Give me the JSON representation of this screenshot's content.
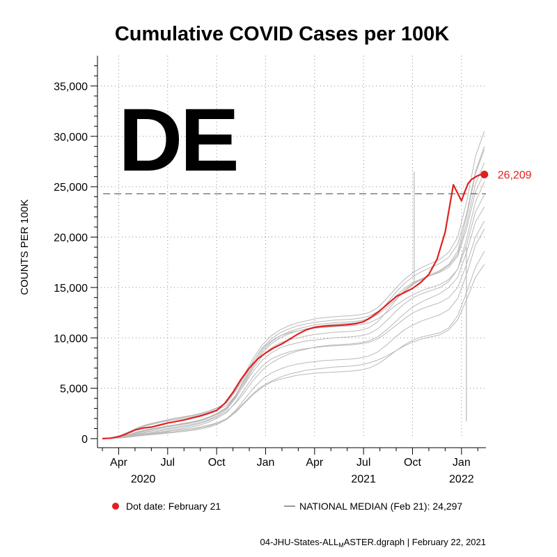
{
  "chart_data": {
    "type": "line",
    "title": "Cumulative COVID Cases per 100K",
    "state_label": "DE",
    "ylabel": "COUNTS PER 100K",
    "xlabel": "",
    "ylim": [
      0,
      38000
    ],
    "yticks": [
      {
        "value": 0,
        "label": "0"
      },
      {
        "value": 5000,
        "label": "5,000"
      },
      {
        "value": 10000,
        "label": "10,000"
      },
      {
        "value": 15000,
        "label": "15,000"
      },
      {
        "value": 20000,
        "label": "20,000"
      },
      {
        "value": 25000,
        "label": "25,000"
      },
      {
        "value": 30000,
        "label": "30,000"
      },
      {
        "value": 35000,
        "label": "35,000"
      }
    ],
    "xlim_months": [
      -0.3,
      23.5
    ],
    "x_axis_note": "x in months since Mar 2020",
    "xticks": [
      {
        "value": 1,
        "label": "Apr"
      },
      {
        "value": 4,
        "label": "Jul"
      },
      {
        "value": 7,
        "label": "Oct"
      },
      {
        "value": 10,
        "label": "Jan"
      },
      {
        "value": 13,
        "label": "Apr"
      },
      {
        "value": 16,
        "label": "Jul"
      },
      {
        "value": 19,
        "label": "Oct"
      },
      {
        "value": 22,
        "label": "Jan"
      }
    ],
    "year_labels": [
      {
        "value": 2.5,
        "label": "2020"
      },
      {
        "value": 16,
        "label": "2021"
      },
      {
        "value": 22,
        "label": "2022"
      }
    ],
    "national_median": {
      "value": 24297,
      "label": "NATIONAL MEDIAN (Feb 21): 24,297"
    },
    "highlight_series": {
      "name": "DE",
      "color": "#e02020",
      "x": [
        0,
        0.5,
        1,
        1.5,
        2,
        2.5,
        3,
        3.5,
        4,
        4.5,
        5,
        5.5,
        6,
        6.5,
        7,
        7.5,
        8,
        8.5,
        9,
        9.5,
        10,
        10.5,
        11,
        11.5,
        12,
        12.5,
        13,
        13.5,
        14,
        14.5,
        15,
        15.5,
        16,
        16.5,
        17,
        17.5,
        18,
        18.5,
        19,
        19.5,
        20,
        20.5,
        21,
        21.5,
        22,
        22.2,
        22.4,
        22.6,
        22.8,
        23,
        23.2,
        23.4
      ],
      "values": [
        0,
        50,
        200,
        500,
        850,
        1050,
        1150,
        1350,
        1550,
        1700,
        1850,
        2050,
        2250,
        2500,
        2800,
        3500,
        4600,
        5900,
        7000,
        7900,
        8500,
        9000,
        9400,
        9900,
        10400,
        10800,
        11050,
        11150,
        11200,
        11250,
        11300,
        11400,
        11600,
        12100,
        12700,
        13400,
        14100,
        14500,
        14900,
        15500,
        16300,
        17800,
        20500,
        25200,
        23600,
        24500,
        25300,
        25700,
        25900,
        26100,
        26200,
        26209
      ]
    },
    "dot": {
      "x": 23.4,
      "value": 26209,
      "label": "26,209"
    },
    "legend": {
      "dot_label": "Dot date: February 21",
      "median_label": "NATIONAL MEDIAN (Feb 21): 24,297"
    },
    "background_series_note": "gray lines = other US states (cumulative cases per 100K)",
    "background_series": [
      {
        "name": "state-01",
        "values": [
          0,
          30,
          100,
          250,
          450,
          600,
          700,
          850,
          1000,
          1150,
          1300,
          1500,
          1800,
          2200,
          2700,
          3500,
          4600,
          5800,
          6800,
          7500,
          8000,
          8400,
          8700,
          8900,
          9100,
          9200,
          9300,
          9350,
          9400,
          9500,
          9700,
          10100,
          10800,
          11600,
          12400,
          13100,
          13600,
          14000,
          14400,
          15000,
          16000,
          18500,
          21500,
          23000
        ]
      },
      {
        "name": "state-02",
        "values": [
          0,
          20,
          80,
          200,
          350,
          450,
          550,
          650,
          800,
          900,
          1000,
          1150,
          1350,
          1600,
          2000,
          2700,
          3600,
          4500,
          5200,
          5700,
          6100,
          6400,
          6600,
          6800,
          6900,
          7000,
          7100,
          7150,
          7200,
          7300,
          7500,
          7800,
          8200,
          8700,
          9200,
          9600,
          9900,
          10100,
          10300,
          10800,
          11800,
          13800,
          16000,
          17300
        ]
      },
      {
        "name": "state-03",
        "values": [
          0,
          60,
          250,
          600,
          1000,
          1300,
          1500,
          1700,
          1850,
          2000,
          2150,
          2350,
          2600,
          2900,
          3300,
          4300,
          5700,
          7200,
          8500,
          9400,
          10000,
          10400,
          10700,
          10900,
          11100,
          11250,
          11350,
          11400,
          11450,
          11550,
          11800,
          12400,
          13400,
          14500,
          15400,
          16100,
          16600,
          17000,
          17400,
          18000,
          19300,
          22300,
          26500,
          29000
        ]
      },
      {
        "name": "state-04",
        "values": [
          0,
          40,
          150,
          350,
          600,
          800,
          950,
          1100,
          1250,
          1400,
          1550,
          1750,
          2050,
          2450,
          3000,
          4200,
          5800,
          7400,
          8700,
          9600,
          10200,
          10600,
          10900,
          11100,
          11300,
          11400,
          11500,
          11550,
          11600,
          11700,
          11900,
          12300,
          13000,
          13800,
          14600,
          15300,
          15800,
          16200,
          16600,
          17200,
          18300,
          21300,
          25300,
          27400
        ]
      },
      {
        "name": "state-05",
        "values": [
          0,
          25,
          90,
          220,
          380,
          500,
          600,
          720,
          850,
          1000,
          1150,
          1350,
          1650,
          2050,
          2600,
          3600,
          4900,
          6200,
          7200,
          7900,
          8300,
          8600,
          8800,
          8950,
          9050,
          9150,
          9200,
          9250,
          9300,
          9400,
          9550,
          9900,
          10500,
          11200,
          11900,
          12500,
          12900,
          13200,
          13500,
          14000,
          15000,
          17300,
          20000,
          21600
        ]
      },
      {
        "name": "state-06",
        "values": [
          0,
          80,
          300,
          700,
          1100,
          1400,
          1600,
          1800,
          2000,
          2150,
          2300,
          2500,
          2750,
          3100,
          3600,
          4800,
          6400,
          8000,
          9300,
          10200,
          10800,
          11200,
          11500,
          11700,
          11900,
          12000,
          12100,
          12150,
          12200,
          12300,
          12500,
          13000,
          13900,
          14900,
          15800,
          16500,
          17000,
          17400,
          17800,
          18500,
          20000,
          23500,
          28000,
          30500
        ]
      },
      {
        "name": "state-07",
        "values": [
          0,
          15,
          60,
          150,
          260,
          350,
          420,
          500,
          600,
          700,
          800,
          950,
          1150,
          1450,
          1900,
          2600,
          3500,
          4400,
          5100,
          5600,
          5900,
          6100,
          6300,
          6400,
          6500,
          6550,
          6600,
          6650,
          6700,
          6800,
          7000,
          7400,
          8000,
          8700,
          9300,
          9800,
          10100,
          10300,
          10500,
          11000,
          12200,
          14500,
          17000,
          18600
        ]
      },
      {
        "name": "state-08",
        "values": [
          0,
          50,
          180,
          420,
          700,
          900,
          1050,
          1200,
          1350,
          1500,
          1650,
          1850,
          2150,
          2550,
          3100,
          4100,
          5400,
          6700,
          7800,
          8500,
          9000,
          9300,
          9500,
          9700,
          9800,
          9900,
          10000,
          10050,
          10100,
          10200,
          10400,
          10900,
          11700,
          12600,
          13400,
          14000,
          14400,
          14700,
          15000,
          15600,
          16800,
          19800,
          23500,
          25500
        ]
      },
      {
        "name": "state-09",
        "values": [
          0,
          35,
          120,
          300,
          520,
          700,
          820,
          950,
          1100,
          1250,
          1400,
          1600,
          1900,
          2300,
          2900,
          4000,
          5500,
          7000,
          8200,
          9000,
          9500,
          9800,
          10000,
          10200,
          10350,
          10450,
          10550,
          10600,
          10650,
          10750,
          11000,
          11600,
          12600,
          13700,
          14700,
          15400,
          15900,
          16300,
          16700,
          17300,
          18600,
          22000,
          26300,
          28700
        ]
      },
      {
        "name": "state-10",
        "values": [
          0,
          45,
          160,
          380,
          650,
          850,
          1000,
          1150,
          1300,
          1450,
          1600,
          1800,
          2100,
          2500,
          3100,
          4300,
          6000,
          7700,
          9000,
          9900,
          10500,
          10900,
          11200,
          11400,
          11550,
          11650,
          11750,
          11800,
          11850,
          11950,
          12150,
          12600,
          13300,
          14100,
          14900,
          15500,
          15900,
          16200,
          16500,
          17000,
          18100,
          20800,
          24500,
          26400
        ]
      },
      {
        "name": "state-11",
        "values": [
          0,
          20,
          70,
          170,
          300,
          400,
          480,
          570,
          680,
          790,
          900,
          1050,
          1250,
          1550,
          2000,
          2800,
          3900,
          5000,
          5900,
          6500,
          6900,
          7200,
          7400,
          7550,
          7650,
          7750,
          7800,
          7850,
          7900,
          8000,
          8200,
          8600,
          9300,
          10100,
          10800,
          11300,
          11700,
          12000,
          12300,
          12800,
          13900,
          16300,
          19200,
          20800
        ]
      },
      {
        "name": "state-12",
        "values": [
          0,
          70,
          270,
          640,
          1050,
          1350,
          1550,
          1750,
          1950,
          2100,
          2250,
          2450,
          2700,
          3050,
          3550,
          4700,
          6200,
          7700,
          8900,
          9700,
          10200,
          10500,
          10700,
          10850,
          10950,
          11050,
          11100,
          11150,
          11200,
          11300,
          11500,
          11900,
          12500,
          13200,
          13800,
          14300,
          14700,
          15000,
          15300,
          15800,
          16800,
          19200,
          22500,
          24200
        ]
      }
    ]
  },
  "footer": {
    "source": "04-JHU-States-ALL",
    "source_sub": "M",
    "source_rest": "ASTER.dgraph | February 22, 2021"
  }
}
